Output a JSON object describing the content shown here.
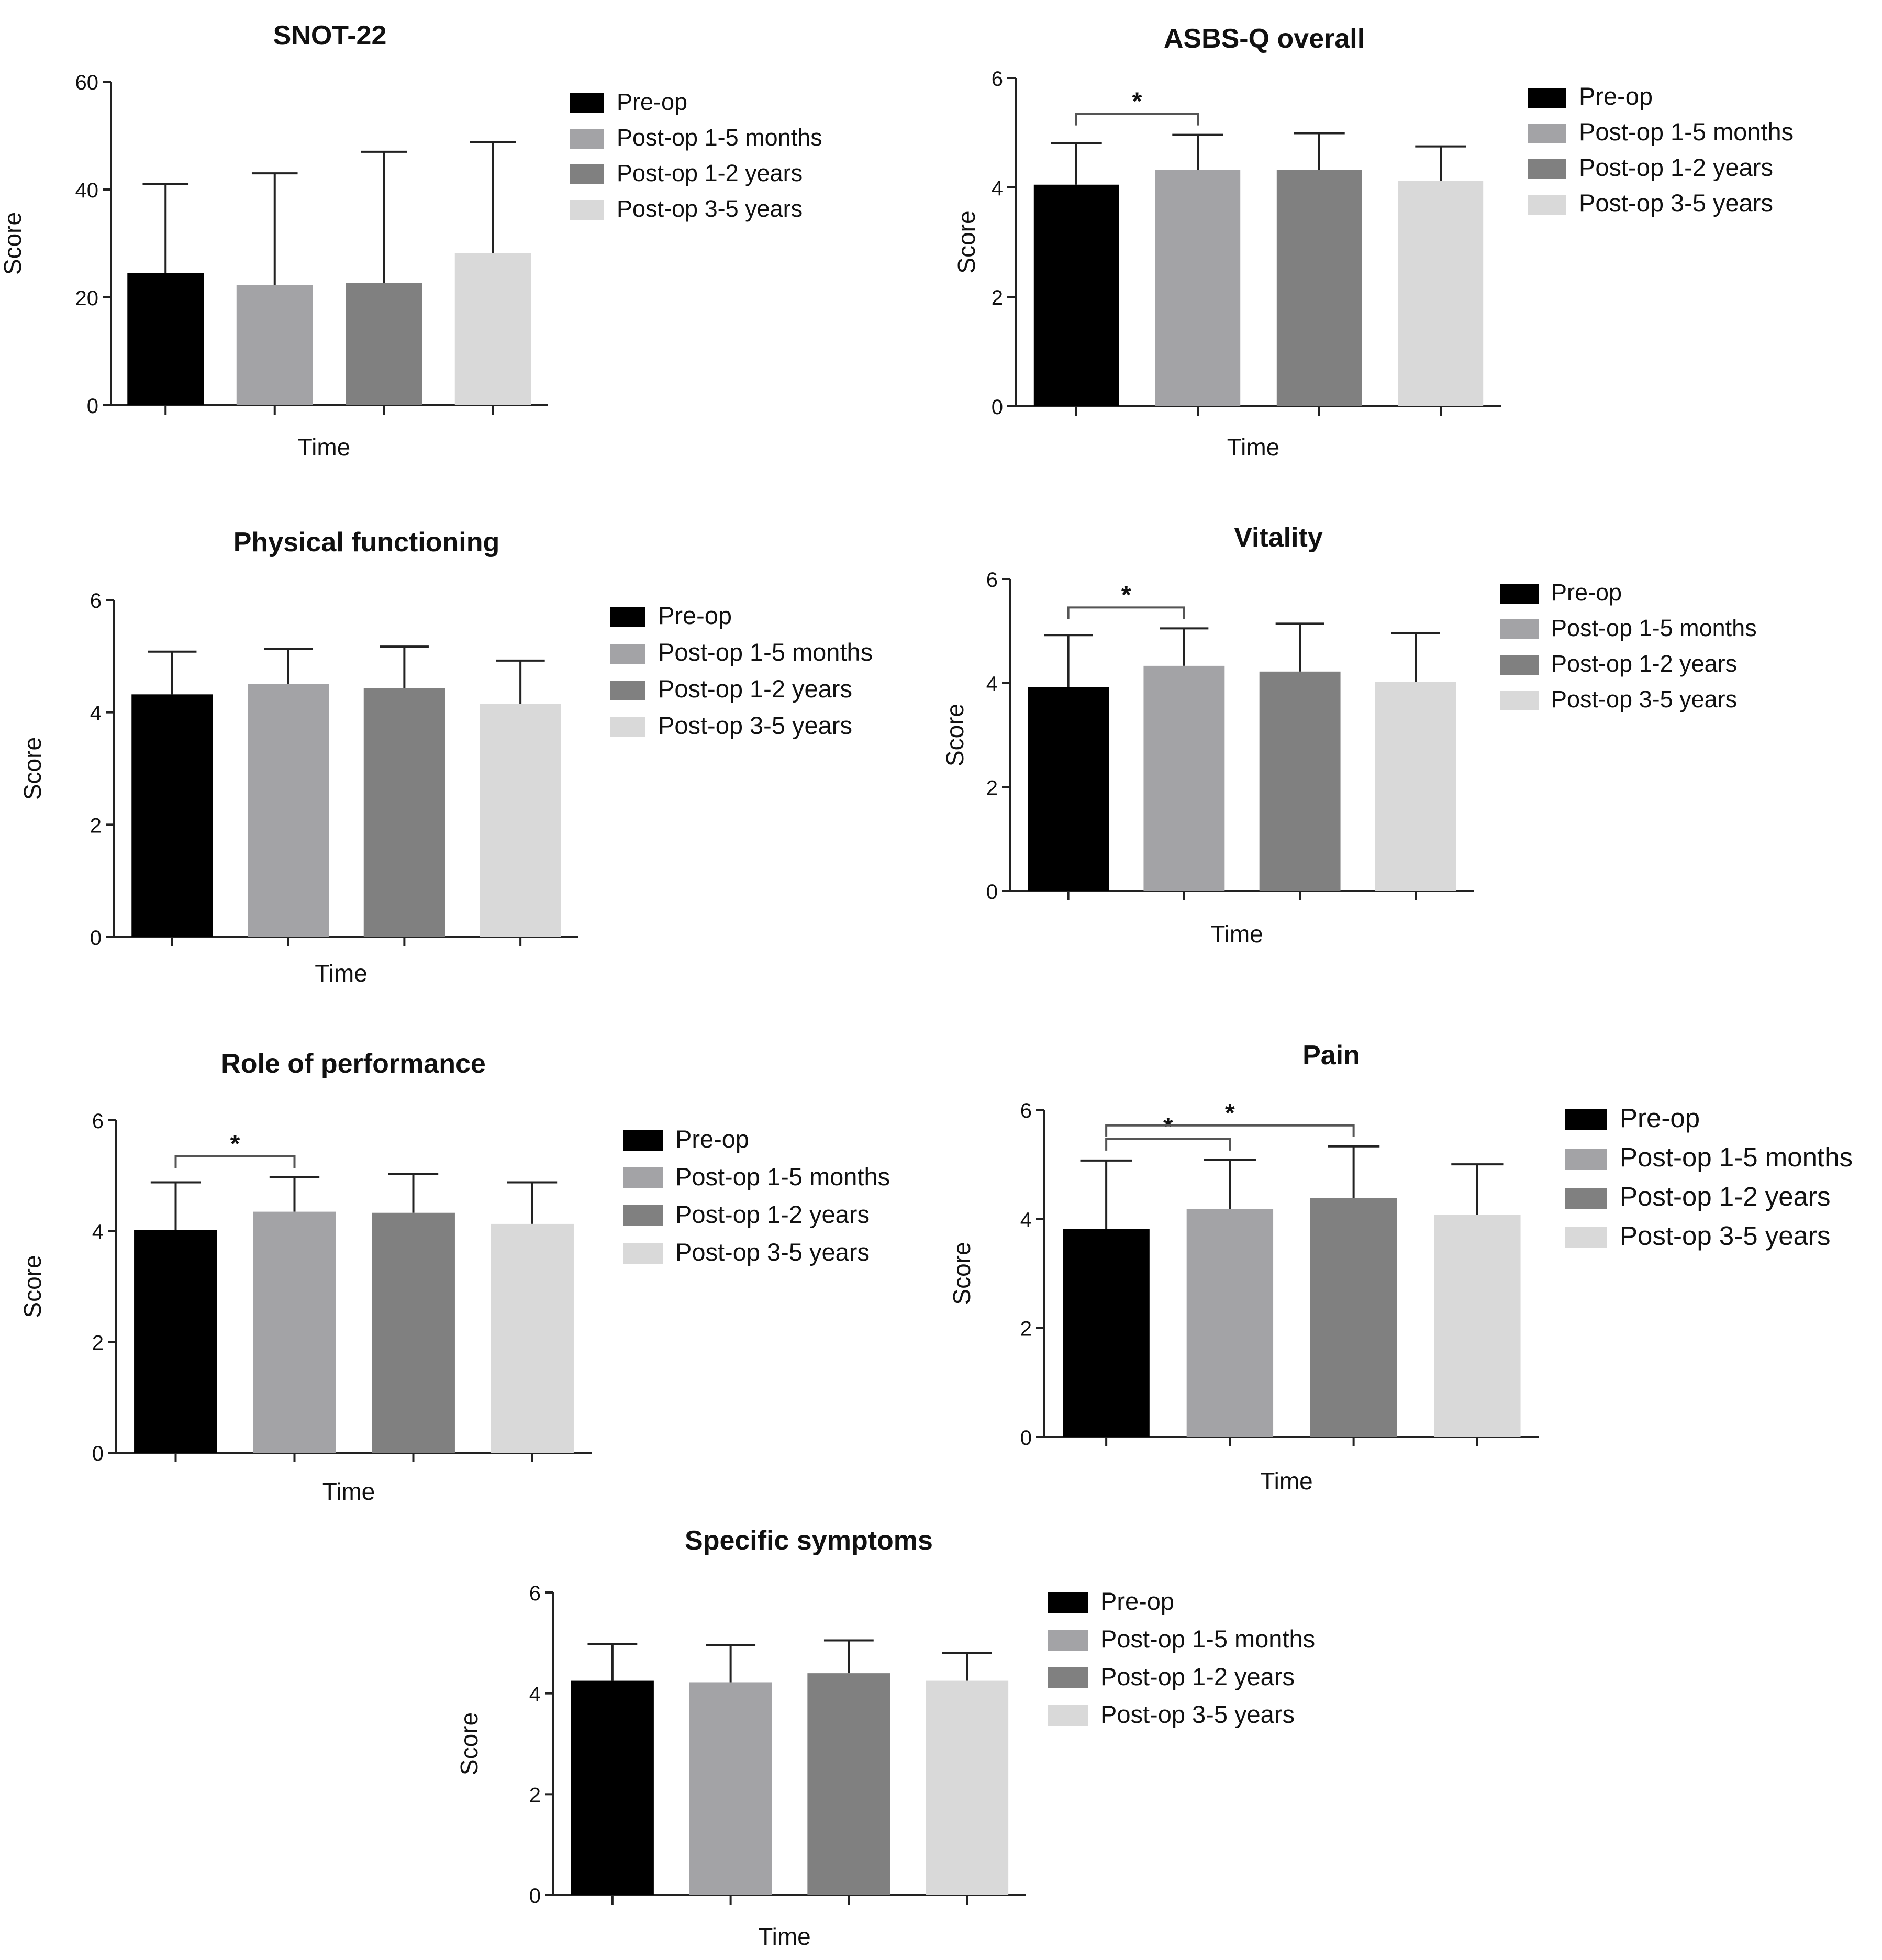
{
  "legend": {
    "entries": [
      "Pre-op",
      "Post-op 1-5 months",
      "Post-op 1-2 years",
      "Post-op 3-5 years"
    ],
    "colors": [
      "#000000",
      "#a3a3a6",
      "#808080",
      "#d9d9d9"
    ]
  },
  "chart_data": [
    {
      "id": "snot22",
      "type": "bar",
      "title": "SNOT-22",
      "xlabel": "Time",
      "ylabel": "Score",
      "ylim": [
        0,
        60
      ],
      "yticks": [
        0,
        20,
        40,
        60
      ],
      "categories": [
        "Pre-op",
        "Post-op 1-5 months",
        "Post-op 1-2 years",
        "Post-op 3-5 years"
      ],
      "values": [
        24.5,
        22.3,
        22.7,
        28.2
      ],
      "errors": [
        16.5,
        20.7,
        24.3,
        20.6
      ],
      "significance": []
    },
    {
      "id": "asbsq",
      "type": "bar",
      "title": "ASBS-Q overall",
      "xlabel": "Time",
      "ylabel": "Score",
      "ylim": [
        0,
        6
      ],
      "yticks": [
        0,
        2,
        4,
        6
      ],
      "categories": [
        "Pre-op",
        "Post-op 1-5 months",
        "Post-op 1-2 years",
        "Post-op 3-5 years"
      ],
      "values": [
        4.05,
        4.32,
        4.32,
        4.12
      ],
      "errors": [
        0.76,
        0.64,
        0.67,
        0.63
      ],
      "significance": [
        {
          "from": 0,
          "to": 1,
          "label": "*"
        }
      ]
    },
    {
      "id": "physical",
      "type": "bar",
      "title": "Physical functioning",
      "xlabel": "Time",
      "ylabel": "Score",
      "ylim": [
        0,
        6
      ],
      "yticks": [
        0,
        2,
        4,
        6
      ],
      "categories": [
        "Pre-op",
        "Post-op 1-5 months",
        "Post-op 1-2 years",
        "Post-op 3-5 years"
      ],
      "values": [
        4.32,
        4.5,
        4.43,
        4.15
      ],
      "errors": [
        0.76,
        0.63,
        0.74,
        0.77
      ],
      "significance": []
    },
    {
      "id": "vitality",
      "type": "bar",
      "title": "Vitality",
      "xlabel": "Time",
      "ylabel": "Score",
      "ylim": [
        0,
        6
      ],
      "yticks": [
        0,
        2,
        4,
        6
      ],
      "categories": [
        "Pre-op",
        "Post-op 1-5 months",
        "Post-op 1-2 years",
        "Post-op 3-5 years"
      ],
      "values": [
        3.92,
        4.33,
        4.22,
        4.02
      ],
      "errors": [
        1.0,
        0.72,
        0.92,
        0.94
      ],
      "significance": [
        {
          "from": 0,
          "to": 1,
          "label": "*"
        }
      ]
    },
    {
      "id": "role",
      "type": "bar",
      "title": "Role of performance",
      "xlabel": "Time",
      "ylabel": "Score",
      "ylim": [
        0,
        6
      ],
      "yticks": [
        0,
        2,
        4,
        6
      ],
      "categories": [
        "Pre-op",
        "Post-op 1-5 months",
        "Post-op 1-2 years",
        "Post-op 3-5 years"
      ],
      "values": [
        4.02,
        4.35,
        4.33,
        4.13
      ],
      "errors": [
        0.86,
        0.62,
        0.7,
        0.75
      ],
      "significance": [
        {
          "from": 0,
          "to": 1,
          "label": "*"
        }
      ]
    },
    {
      "id": "pain",
      "type": "bar",
      "title": "Pain",
      "xlabel": "Time",
      "ylabel": "Score",
      "ylim": [
        0,
        6
      ],
      "yticks": [
        0,
        2,
        4,
        6
      ],
      "categories": [
        "Pre-op",
        "Post-op 1-5 months",
        "Post-op 1-2 years",
        "Post-op 3-5 years"
      ],
      "values": [
        3.82,
        4.18,
        4.38,
        4.08
      ],
      "errors": [
        1.25,
        0.9,
        0.95,
        0.92
      ],
      "significance": [
        {
          "from": 0,
          "to": 1,
          "label": "*"
        },
        {
          "from": 0,
          "to": 2,
          "label": "*"
        }
      ]
    },
    {
      "id": "specific",
      "type": "bar",
      "title": "Specific symptoms",
      "xlabel": "Time",
      "ylabel": "Score",
      "ylim": [
        0,
        6
      ],
      "yticks": [
        0,
        2,
        4,
        6
      ],
      "categories": [
        "Pre-op",
        "Post-op 1-5 months",
        "Post-op 1-2 years",
        "Post-op 3-5 years"
      ],
      "values": [
        4.25,
        4.22,
        4.4,
        4.25
      ],
      "errors": [
        0.73,
        0.74,
        0.65,
        0.55
      ],
      "significance": []
    }
  ]
}
